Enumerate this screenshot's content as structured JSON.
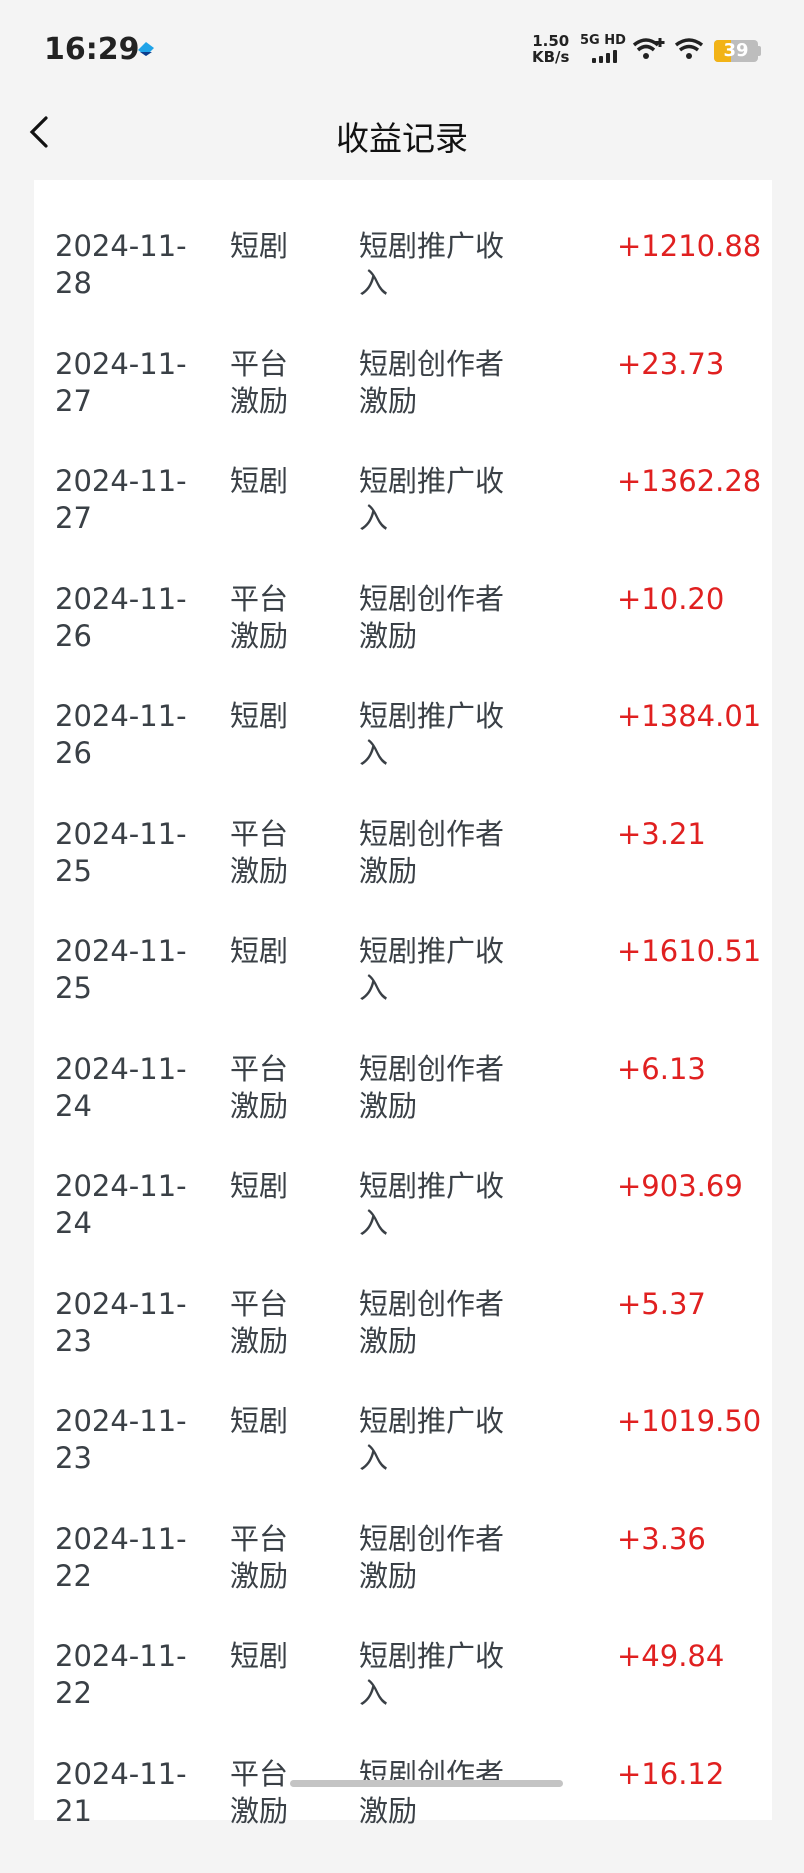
{
  "status_bar": {
    "time": "16:29",
    "net_speed_value": "1.50",
    "net_speed_unit": "KB/s",
    "network": "5G HD",
    "battery": "39",
    "battery_level_percent": 39,
    "battery_color": "#f2b316"
  },
  "header": {
    "title": "收益记录",
    "back_icon": "chevron-left-icon"
  },
  "amount_color": "#e02020",
  "records": [
    {
      "date": "2024-11-28",
      "category": "短剧",
      "description": "短剧推广收入",
      "amount": "+1210.88"
    },
    {
      "date": "2024-11-27",
      "category": "平台激励",
      "description": "短剧创作者激励",
      "amount": "+23.73"
    },
    {
      "date": "2024-11-27",
      "category": "短剧",
      "description": "短剧推广收入",
      "amount": "+1362.28"
    },
    {
      "date": "2024-11-26",
      "category": "平台激励",
      "description": "短剧创作者激励",
      "amount": "+10.20"
    },
    {
      "date": "2024-11-26",
      "category": "短剧",
      "description": "短剧推广收入",
      "amount": "+1384.01"
    },
    {
      "date": "2024-11-25",
      "category": "平台激励",
      "description": "短剧创作者激励",
      "amount": "+3.21"
    },
    {
      "date": "2024-11-25",
      "category": "短剧",
      "description": "短剧推广收入",
      "amount": "+1610.51"
    },
    {
      "date": "2024-11-24",
      "category": "平台激励",
      "description": "短剧创作者激励",
      "amount": "+6.13"
    },
    {
      "date": "2024-11-24",
      "category": "短剧",
      "description": "短剧推广收入",
      "amount": "+903.69"
    },
    {
      "date": "2024-11-23",
      "category": "平台激励",
      "description": "短剧创作者激励",
      "amount": "+5.37"
    },
    {
      "date": "2024-11-23",
      "category": "短剧",
      "description": "短剧推广收入",
      "amount": "+1019.50"
    },
    {
      "date": "2024-11-22",
      "category": "平台激励",
      "description": "短剧创作者激励",
      "amount": "+3.36"
    },
    {
      "date": "2024-11-22",
      "category": "短剧",
      "description": "短剧推广收入",
      "amount": "+49.84"
    },
    {
      "date": "2024-11-21",
      "category": "平台激励",
      "description": "短剧创作者激励",
      "amount": "+16.12"
    }
  ]
}
